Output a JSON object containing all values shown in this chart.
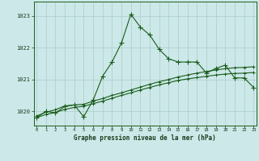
{
  "title": "Graphe pression niveau de la mer (hPa)",
  "bg_color": "#cce8e8",
  "grid_color": "#aacccc",
  "line_color": "#1a5c1a",
  "xlim": [
    -0.3,
    23.3
  ],
  "ylim": [
    1019.55,
    1023.45
  ],
  "yticks": [
    1020,
    1021,
    1022,
    1023
  ],
  "xticks": [
    0,
    1,
    2,
    3,
    4,
    5,
    6,
    7,
    8,
    9,
    10,
    11,
    12,
    13,
    14,
    15,
    16,
    17,
    18,
    19,
    20,
    21,
    22,
    23
  ],
  "series1": [
    1019.8,
    1020.0,
    1019.95,
    1020.15,
    1020.2,
    1019.83,
    1020.35,
    1021.1,
    1021.55,
    1022.15,
    1023.05,
    1022.65,
    1022.4,
    1021.95,
    1021.65,
    1021.55,
    1021.55,
    1021.55,
    1021.2,
    1021.35,
    1021.45,
    1021.05,
    1021.05,
    1020.75
  ],
  "series2": [
    1019.85,
    1019.97,
    1020.05,
    1020.17,
    1020.2,
    1020.22,
    1020.32,
    1020.4,
    1020.5,
    1020.58,
    1020.67,
    1020.76,
    1020.85,
    1020.93,
    1021.0,
    1021.08,
    1021.14,
    1021.2,
    1021.25,
    1021.3,
    1021.34,
    1021.37,
    1021.38,
    1021.4
  ],
  "series3": [
    1019.8,
    1019.9,
    1019.96,
    1020.06,
    1020.12,
    1020.16,
    1020.24,
    1020.32,
    1020.41,
    1020.5,
    1020.58,
    1020.67,
    1020.75,
    1020.83,
    1020.9,
    1020.97,
    1021.02,
    1021.06,
    1021.1,
    1021.14,
    1021.17,
    1021.19,
    1021.2,
    1021.22
  ]
}
